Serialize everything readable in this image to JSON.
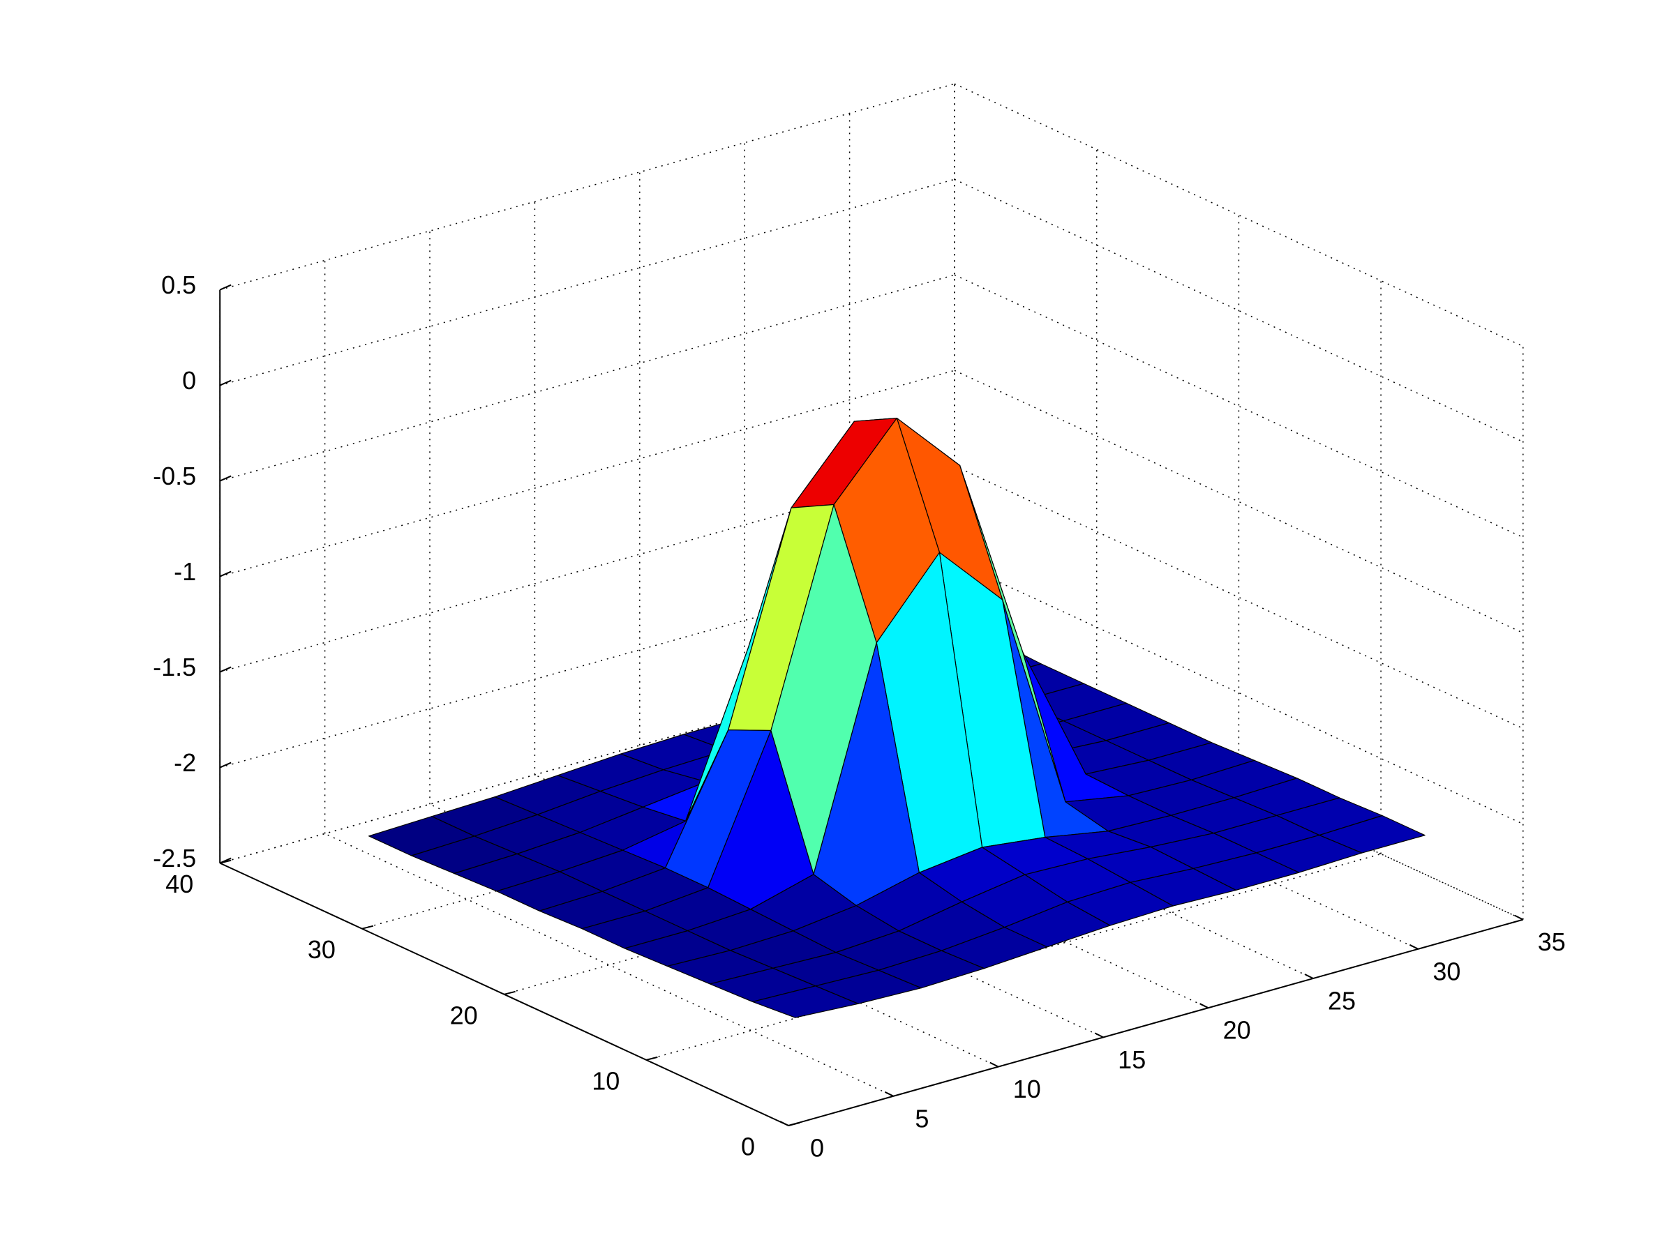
{
  "chart_data": {
    "type": "surface",
    "x": [
      1,
      4,
      7,
      10,
      13,
      16,
      19,
      22,
      25,
      28,
      31
    ],
    "y": [
      1,
      4,
      7,
      10,
      13,
      16,
      19,
      22,
      25,
      28,
      31
    ],
    "z": [
      [
        -2.0,
        -2.02,
        -2.03,
        -2.02,
        -2.0,
        -1.98,
        -1.97,
        -1.98,
        -1.98,
        -1.97,
        -1.97
      ],
      [
        -2.02,
        -2.03,
        -2.04,
        -2.03,
        -2.0,
        -1.96,
        -1.95,
        -1.97,
        -1.98,
        -1.98,
        -1.97
      ],
      [
        -2.03,
        -2.04,
        -2.05,
        -2.03,
        -1.97,
        -1.92,
        -1.93,
        -1.96,
        -1.98,
        -1.98,
        -1.98
      ],
      [
        -2.04,
        -2.05,
        -2.04,
        -2.0,
        -1.92,
        -1.88,
        -1.92,
        -1.98,
        -1.99,
        -1.99,
        -1.98
      ],
      [
        -2.05,
        -2.05,
        -2.03,
        -1.94,
        -0.82,
        -0.44,
        -0.78,
        -1.93,
        -1.99,
        -2.0,
        -1.99
      ],
      [
        -2.05,
        -2.05,
        -2.02,
        -1.29,
        -0.2,
        0.16,
        -0.18,
        -1.25,
        -1.98,
        -2.0,
        -2.0
      ],
      [
        -2.06,
        -2.05,
        -2.02,
        -1.39,
        -0.32,
        0.04,
        -0.3,
        -1.36,
        -1.98,
        -2.0,
        -2.0
      ],
      [
        -2.06,
        -2.05,
        -2.03,
        -1.97,
        -1.15,
        -0.8,
        -1.12,
        -1.96,
        -1.99,
        -2.0,
        -2.0
      ],
      [
        -2.07,
        -2.06,
        -2.04,
        -2.0,
        -1.96,
        -1.94,
        -1.96,
        -1.99,
        -2.0,
        -2.0,
        -2.0
      ],
      [
        -2.08,
        -2.07,
        -2.05,
        -2.02,
        -2.0,
        -1.99,
        -2.0,
        -2.0,
        -2.0,
        -2.0,
        -2.0
      ],
      [
        -2.08,
        -2.07,
        -2.06,
        -2.04,
        -2.02,
        -2.01,
        -2.01,
        -2.0,
        -2.0,
        -2.0,
        -1.99
      ]
    ],
    "colormap": "jet",
    "xlim": [
      0,
      35
    ],
    "xticks": [
      0,
      5,
      10,
      15,
      20,
      25,
      30,
      35
    ],
    "ylim": [
      0,
      40
    ],
    "yticks": [
      0,
      10,
      20,
      30,
      40
    ],
    "zlim": [
      -2.5,
      0.5
    ],
    "zticks": [
      -2.5,
      -2,
      -1.5,
      -1,
      -0.5,
      0,
      0.5
    ],
    "grid": true
  }
}
